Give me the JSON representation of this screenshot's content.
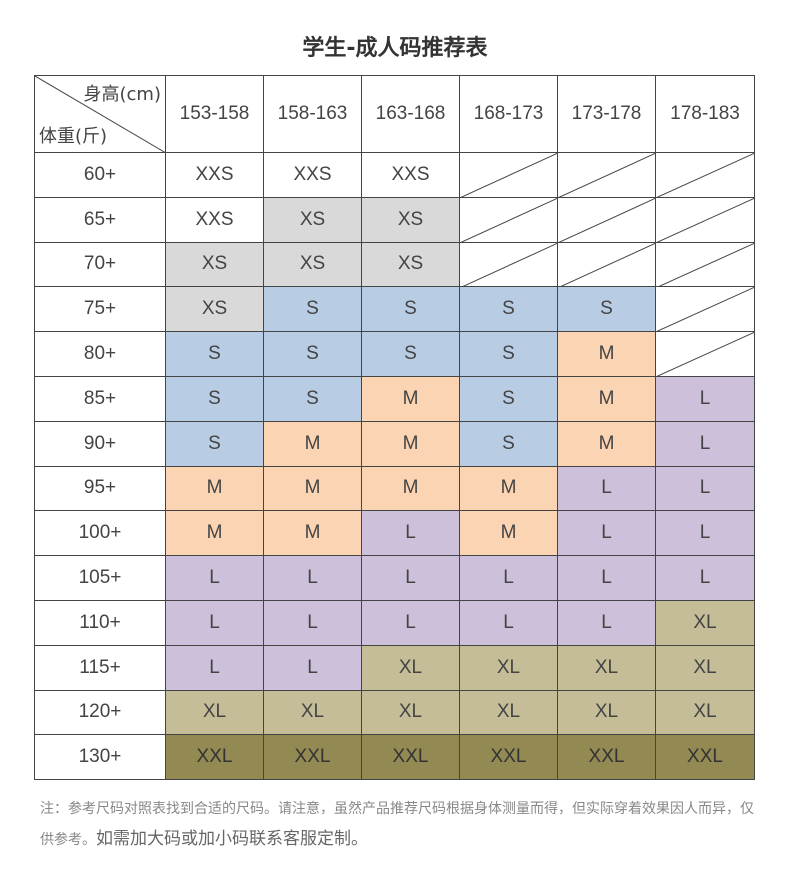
{
  "title": "学生-成人码推荐表",
  "corner": {
    "height_label": "身高(cm)",
    "weight_label": "体重(斤)"
  },
  "columns": [
    "153-158",
    "158-163",
    "163-168",
    "168-173",
    "173-178",
    "178-183"
  ],
  "colors": {
    "XXS": "#ffffff",
    "XS": "#d9d9d9",
    "S": "#b8cce4",
    "M": "#fbd4b4",
    "L": "#ccc0da",
    "XL": "#c4bd97",
    "XXL": "#938953",
    "NA": "#ffffff"
  },
  "rows": [
    {
      "weight": "60+",
      "cells": [
        "XXS",
        "XXS",
        "XXS",
        "",
        "",
        ""
      ]
    },
    {
      "weight": "65+",
      "cells": [
        "XXS",
        "XS",
        "XS",
        "",
        "",
        ""
      ]
    },
    {
      "weight": "70+",
      "cells": [
        "XS",
        "XS",
        "XS",
        "",
        "",
        ""
      ]
    },
    {
      "weight": "75+",
      "cells": [
        "XS",
        "S",
        "S",
        "S",
        "S",
        ""
      ]
    },
    {
      "weight": "80+",
      "cells": [
        "S",
        "S",
        "S",
        "S",
        "M",
        ""
      ]
    },
    {
      "weight": "85+",
      "cells": [
        "S",
        "S",
        "M",
        "S",
        "M",
        "L"
      ]
    },
    {
      "weight": "90+",
      "cells": [
        "S",
        "M",
        "M",
        "S",
        "M",
        "L"
      ]
    },
    {
      "weight": "95+",
      "cells": [
        "M",
        "M",
        "M",
        "M",
        "L",
        "L"
      ]
    },
    {
      "weight": "100+",
      "cells": [
        "M",
        "M",
        "L",
        "M",
        "L",
        "L"
      ]
    },
    {
      "weight": "105+",
      "cells": [
        "L",
        "L",
        "L",
        "L",
        "L",
        "L"
      ]
    },
    {
      "weight": "110+",
      "cells": [
        "L",
        "L",
        "L",
        "L",
        "L",
        "XL"
      ]
    },
    {
      "weight": "115+",
      "cells": [
        "L",
        "L",
        "XL",
        "XL",
        "XL",
        "XL"
      ]
    },
    {
      "weight": "120+",
      "cells": [
        "XL",
        "XL",
        "XL",
        "XL",
        "XL",
        "XL"
      ]
    },
    {
      "weight": "130+",
      "cells": [
        "XXL",
        "XXL",
        "XXL",
        "XXL",
        "XXL",
        "XXL"
      ]
    }
  ],
  "note": {
    "text": "注：参考尺码对照表找到合适的尺码。请注意，虽然产品推荐尺码根据身体测量而得，但实际穿着效果因人而异，仅供参考。",
    "emphasis": "如需加大码或加小码联系客服定制。"
  }
}
